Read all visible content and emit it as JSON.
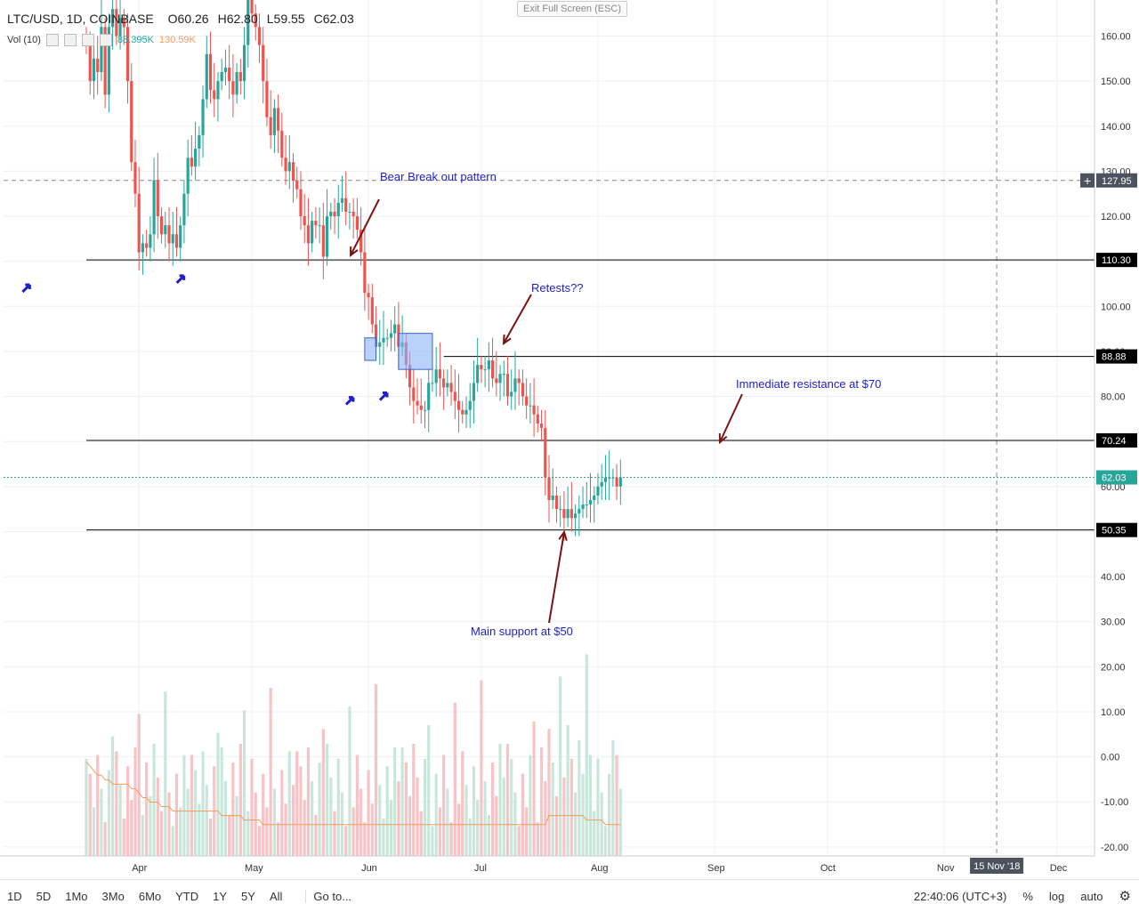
{
  "window": {
    "exit_fullscreen": "Exit Full Screen (ESC)"
  },
  "legend": {
    "symbol": "LTC/USD, 1D, COINBASE",
    "open": "O60.26",
    "high": "H62.80",
    "low": "L59.55",
    "close": "C62.03"
  },
  "volume_legend": {
    "label": "Vol (10)",
    "vol": "88.395K",
    "ma": "130.59K"
  },
  "bottom_bar": {
    "ranges": [
      "1D",
      "5D",
      "1Mo",
      "3Mo",
      "6Mo",
      "YTD",
      "1Y",
      "5Y",
      "All"
    ],
    "goto": "Go to...",
    "time": "22:40:06 (UTC+3)",
    "percent": "%",
    "log": "log",
    "auto": "auto"
  },
  "colors": {
    "up": "#26a69a",
    "down": "#ef5350",
    "annotation_text": "#1f1fc8",
    "arrow": "#7a1414",
    "vol_up": "#c8e6d9",
    "vol_down": "#f7c3c6",
    "vol_ma": "#f39c5a",
    "box_fill": "#8ab4f8",
    "box_stroke": "#3a66c8"
  },
  "chart_data": {
    "type": "candlestick",
    "symbol": "LTC/USD",
    "timeframe": "1D",
    "exchange": "COINBASE",
    "y_axis": {
      "range": [
        -22,
        168
      ],
      "ticks": [
        160,
        150,
        140,
        130,
        120,
        110,
        100,
        90,
        80,
        70,
        60,
        50,
        40,
        30,
        20,
        10,
        0,
        -10,
        -20
      ],
      "tick_labels": [
        "160.00",
        "150.00",
        "140.00",
        "130.00",
        "120.00",
        "110.00",
        "100.00",
        "90.00",
        "80.00",
        "70.00",
        "60.00",
        "50.00",
        "40.00",
        "30.00",
        "20.00",
        "10.00",
        "0.00",
        "-10.00",
        "-20.00"
      ]
    },
    "x_axis": {
      "labels": [
        "Apr",
        "May",
        "Jun",
        "Jul",
        "Aug",
        "Sep",
        "Oct",
        "Nov",
        "Dec"
      ],
      "label_day_index": [
        14,
        44,
        75,
        105,
        136,
        167,
        197,
        228,
        258
      ],
      "cursor_label": "15 Nov '18",
      "cursor_day_index": 242
    },
    "price_labels": [
      {
        "text": "127.95",
        "value": 127.95,
        "type": "crosshair"
      },
      {
        "text": "110.30",
        "value": 110.3,
        "type": "line"
      },
      {
        "text": "88.88",
        "value": 88.88,
        "type": "line"
      },
      {
        "text": "70.24",
        "value": 70.24,
        "type": "line"
      },
      {
        "text": "62.03",
        "value": 62.03,
        "type": "last"
      },
      {
        "text": "50.35",
        "value": 50.35,
        "type": "line"
      }
    ],
    "horizontal_lines": [
      {
        "value": 110.3,
        "from_day": 0
      },
      {
        "value": 88.88,
        "from_day": 95
      },
      {
        "value": 70.24,
        "from_day": 0
      },
      {
        "value": 50.35,
        "from_day": 0
      }
    ],
    "crosshair_value": 127.95,
    "last_price": 62.03,
    "closes": [
      158,
      150,
      155,
      152,
      162,
      147,
      162,
      166,
      160,
      164,
      162,
      150,
      132,
      125,
      112,
      114,
      113,
      116,
      128,
      120,
      116,
      118,
      114,
      116,
      113,
      118,
      125,
      133,
      131,
      135,
      138,
      146,
      156,
      148,
      146,
      150,
      152,
      153,
      150,
      147,
      152,
      150,
      158,
      170,
      165,
      162,
      158,
      150,
      142,
      138,
      144,
      139,
      133,
      130,
      132,
      128,
      126,
      120,
      118,
      114,
      119,
      118,
      118,
      111,
      120,
      121,
      120,
      123,
      124,
      121,
      121,
      120,
      117,
      112,
      103,
      102,
      96,
      91,
      92,
      93,
      93,
      94,
      96,
      91,
      92,
      87,
      82,
      79,
      78,
      77,
      77,
      83,
      83,
      86,
      84,
      82,
      83,
      81,
      79,
      77,
      76,
      77,
      79,
      83,
      87,
      86,
      86,
      88,
      84,
      83,
      85,
      85,
      80,
      81,
      84,
      83,
      80,
      78,
      78,
      76,
      74,
      73,
      62,
      57,
      58,
      55,
      55,
      53,
      55,
      53,
      54,
      55,
      56,
      56,
      57,
      58,
      60,
      61,
      62,
      62,
      62,
      60,
      62
    ],
    "volume": {
      "ma_values": [
        21,
        20,
        19,
        18,
        18,
        17,
        17,
        16,
        16,
        16,
        16,
        16,
        15,
        15,
        14,
        13,
        13,
        12,
        12,
        12,
        11,
        11,
        11,
        10,
        10,
        10,
        10,
        10,
        10,
        10,
        10,
        10,
        10,
        10,
        10,
        10,
        9,
        9,
        9,
        9,
        9,
        9,
        8,
        8,
        8,
        8,
        8,
        7,
        7,
        7,
        7,
        7,
        7,
        7,
        7,
        7,
        7,
        7,
        7,
        7,
        7,
        7,
        7,
        7,
        7,
        7,
        7,
        7,
        7,
        7,
        7,
        7,
        7,
        7,
        7,
        7,
        7,
        7,
        7,
        7,
        7,
        7,
        7,
        7,
        7,
        7,
        7,
        7,
        7,
        7,
        7,
        7,
        7,
        7,
        7,
        7,
        7,
        7,
        7,
        7,
        7,
        7,
        7,
        7,
        7,
        7,
        7,
        7,
        7,
        7,
        7,
        7,
        7,
        7,
        7,
        7,
        7,
        7,
        7,
        7,
        7,
        7,
        7,
        9,
        9,
        9,
        9,
        9,
        9,
        9,
        9,
        9,
        9,
        8,
        8,
        8,
        8,
        8,
        7,
        7,
        7,
        7,
        7
      ]
    },
    "annotations": [
      {
        "text": "Bear Break out pattern"
      },
      {
        "text": "Retests??"
      },
      {
        "text": "Immediate resistance at $70"
      },
      {
        "text": "Main support at $50"
      }
    ]
  }
}
